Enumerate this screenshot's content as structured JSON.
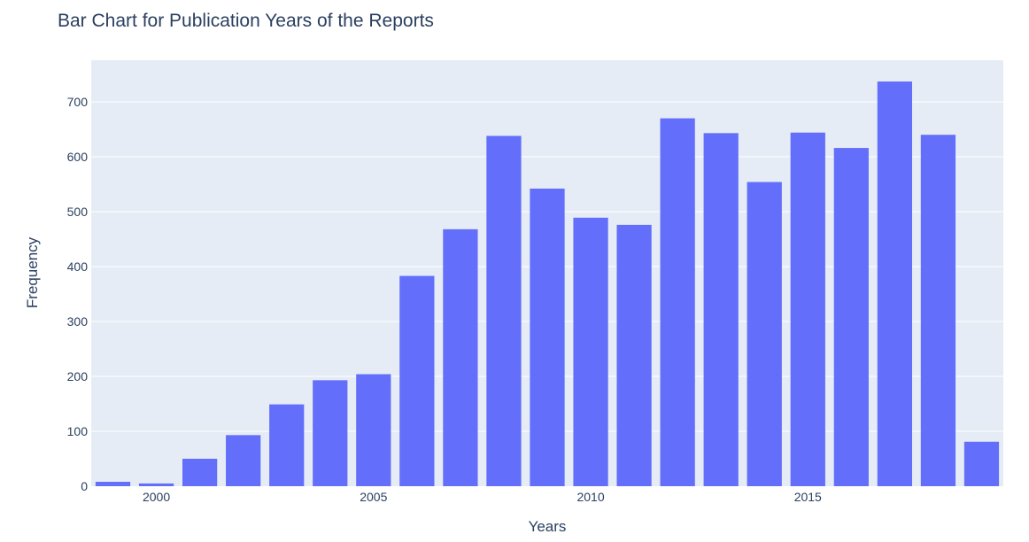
{
  "chart_data": {
    "type": "bar",
    "title": "Bar Chart for Publication Years of the Reports",
    "xlabel": "Years",
    "ylabel": "Frequency",
    "x": [
      1999,
      2000,
      2001,
      2002,
      2003,
      2004,
      2005,
      2006,
      2007,
      2008,
      2009,
      2010,
      2011,
      2012,
      2013,
      2014,
      2015,
      2016,
      2017,
      2018,
      2019
    ],
    "values": [
      8,
      5,
      50,
      93,
      149,
      193,
      204,
      383,
      468,
      638,
      542,
      489,
      476,
      670,
      643,
      554,
      644,
      616,
      737,
      640,
      81
    ],
    "x_ticks": [
      2000,
      2005,
      2010,
      2015
    ],
    "y_ticks": [
      0,
      100,
      200,
      300,
      400,
      500,
      600,
      700
    ],
    "xlim": [
      1998.5,
      2019.5
    ],
    "ylim": [
      0,
      775.8
    ],
    "grid": true,
    "legend": "none",
    "colors": {
      "bar": "#636efa",
      "plot_bg": "#e5ecf6",
      "grid": "#ffffff",
      "text": "#2a3f5f"
    }
  }
}
